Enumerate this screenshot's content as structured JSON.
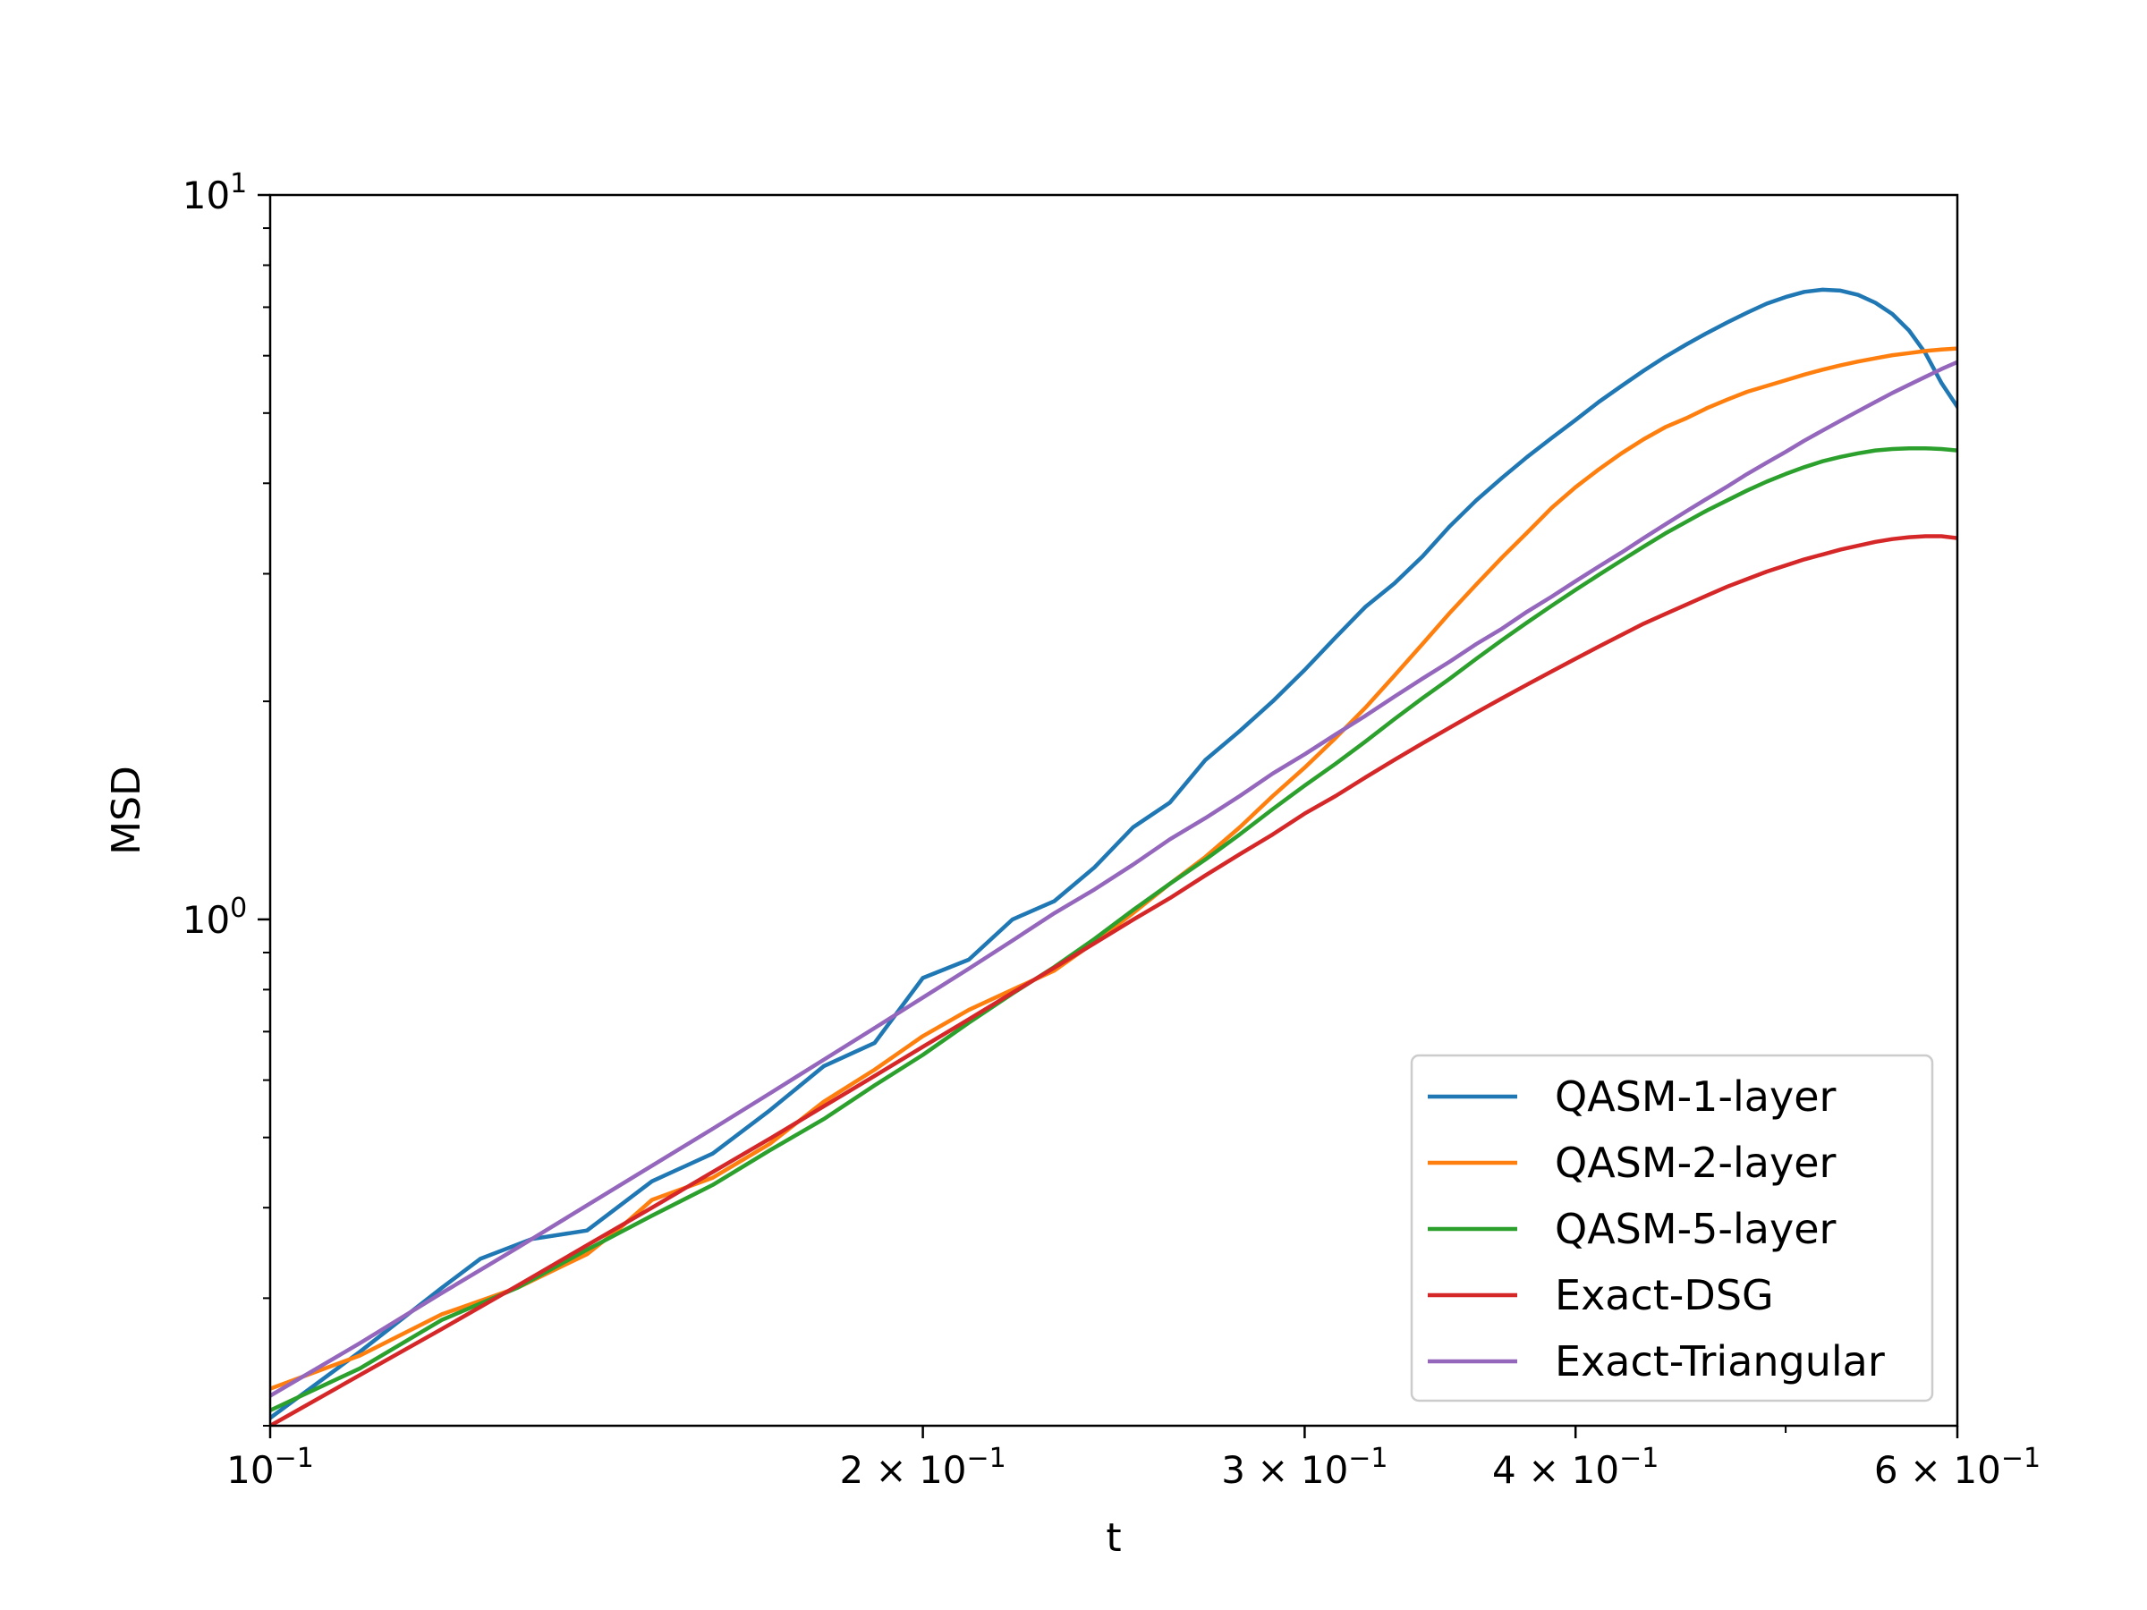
{
  "chart_data": {
    "type": "line",
    "title": "",
    "xlabel": "t",
    "ylabel": "MSD",
    "xscale": "log",
    "yscale": "log",
    "xlim": [
      0.1,
      0.6
    ],
    "ylim": [
      0.2,
      10
    ],
    "grid": false,
    "legend_position": "lower-right",
    "x_ticks": [
      {
        "value": 0.1,
        "label": "10",
        "sup": "−1"
      },
      {
        "value": 0.2,
        "label": "2 × 10",
        "sup": "−1"
      },
      {
        "value": 0.3,
        "label": "3 × 10",
        "sup": "−1"
      },
      {
        "value": 0.4,
        "label": "4 × 10",
        "sup": "−1"
      },
      {
        "value": 0.6,
        "label": "6 × 10",
        "sup": "−1"
      }
    ],
    "y_ticks": [
      {
        "value": 1,
        "label": "10",
        "sup": "0"
      },
      {
        "value": 10,
        "label": "10",
        "sup": "1"
      }
    ],
    "series": [
      {
        "name": "QASM-1-layer",
        "color": "#1f77b4",
        "points": [
          [
            0.1,
            0.205
          ],
          [
            0.11,
            0.253
          ],
          [
            0.12,
            0.31
          ],
          [
            0.125,
            0.34
          ],
          [
            0.132,
            0.362
          ],
          [
            0.14,
            0.372
          ],
          [
            0.15,
            0.435
          ],
          [
            0.16,
            0.475
          ],
          [
            0.17,
            0.545
          ],
          [
            0.18,
            0.627
          ],
          [
            0.19,
            0.675
          ],
          [
            0.2,
            0.83
          ],
          [
            0.21,
            0.88
          ],
          [
            0.22,
            1.0
          ],
          [
            0.23,
            1.06
          ],
          [
            0.24,
            1.18
          ],
          [
            0.25,
            1.34
          ],
          [
            0.26,
            1.45
          ],
          [
            0.27,
            1.66
          ],
          [
            0.28,
            1.82
          ],
          [
            0.29,
            2.0
          ],
          [
            0.3,
            2.21
          ],
          [
            0.31,
            2.45
          ],
          [
            0.32,
            2.7
          ],
          [
            0.33,
            2.91
          ],
          [
            0.34,
            3.17
          ],
          [
            0.35,
            3.49
          ],
          [
            0.36,
            3.79
          ],
          [
            0.37,
            4.07
          ],
          [
            0.38,
            4.35
          ],
          [
            0.39,
            4.62
          ],
          [
            0.4,
            4.89
          ],
          [
            0.41,
            5.18
          ],
          [
            0.42,
            5.45
          ],
          [
            0.43,
            5.72
          ],
          [
            0.44,
            5.98
          ],
          [
            0.45,
            6.22
          ],
          [
            0.46,
            6.45
          ],
          [
            0.47,
            6.67
          ],
          [
            0.48,
            6.88
          ],
          [
            0.49,
            7.08
          ],
          [
            0.5,
            7.23
          ],
          [
            0.51,
            7.35
          ],
          [
            0.52,
            7.4
          ],
          [
            0.53,
            7.38
          ],
          [
            0.54,
            7.28
          ],
          [
            0.55,
            7.1
          ],
          [
            0.56,
            6.85
          ],
          [
            0.57,
            6.5
          ],
          [
            0.58,
            6.05
          ],
          [
            0.59,
            5.5
          ],
          [
            0.6,
            5.1
          ]
        ]
      },
      {
        "name": "QASM-2-layer",
        "color": "#ff7f0e",
        "points": [
          [
            0.1,
            0.225
          ],
          [
            0.11,
            0.25
          ],
          [
            0.12,
            0.285
          ],
          [
            0.13,
            0.31
          ],
          [
            0.14,
            0.345
          ],
          [
            0.145,
            0.375
          ],
          [
            0.15,
            0.41
          ],
          [
            0.16,
            0.44
          ],
          [
            0.17,
            0.49
          ],
          [
            0.18,
            0.56
          ],
          [
            0.19,
            0.62
          ],
          [
            0.2,
            0.69
          ],
          [
            0.21,
            0.75
          ],
          [
            0.22,
            0.8
          ],
          [
            0.23,
            0.85
          ],
          [
            0.24,
            0.93
          ],
          [
            0.25,
            1.02
          ],
          [
            0.26,
            1.12
          ],
          [
            0.27,
            1.22
          ],
          [
            0.28,
            1.34
          ],
          [
            0.29,
            1.48
          ],
          [
            0.3,
            1.62
          ],
          [
            0.31,
            1.78
          ],
          [
            0.32,
            1.96
          ],
          [
            0.33,
            2.17
          ],
          [
            0.34,
            2.4
          ],
          [
            0.35,
            2.65
          ],
          [
            0.36,
            2.9
          ],
          [
            0.37,
            3.16
          ],
          [
            0.38,
            3.42
          ],
          [
            0.39,
            3.7
          ],
          [
            0.4,
            3.95
          ],
          [
            0.41,
            4.18
          ],
          [
            0.42,
            4.4
          ],
          [
            0.43,
            4.6
          ],
          [
            0.44,
            4.78
          ],
          [
            0.45,
            4.92
          ],
          [
            0.46,
            5.08
          ],
          [
            0.47,
            5.22
          ],
          [
            0.48,
            5.35
          ],
          [
            0.49,
            5.45
          ],
          [
            0.5,
            5.55
          ],
          [
            0.51,
            5.65
          ],
          [
            0.52,
            5.74
          ],
          [
            0.53,
            5.82
          ],
          [
            0.54,
            5.89
          ],
          [
            0.55,
            5.95
          ],
          [
            0.56,
            6.01
          ],
          [
            0.57,
            6.05
          ],
          [
            0.58,
            6.09
          ],
          [
            0.59,
            6.12
          ],
          [
            0.6,
            6.14
          ]
        ]
      },
      {
        "name": "QASM-5-layer",
        "color": "#2ca02c",
        "points": [
          [
            0.1,
            0.21
          ],
          [
            0.11,
            0.24
          ],
          [
            0.12,
            0.28
          ],
          [
            0.13,
            0.31
          ],
          [
            0.14,
            0.35
          ],
          [
            0.15,
            0.39
          ],
          [
            0.16,
            0.43
          ],
          [
            0.17,
            0.48
          ],
          [
            0.18,
            0.53
          ],
          [
            0.19,
            0.59
          ],
          [
            0.2,
            0.65
          ],
          [
            0.21,
            0.72
          ],
          [
            0.22,
            0.79
          ],
          [
            0.23,
            0.86
          ],
          [
            0.24,
            0.94
          ],
          [
            0.25,
            1.03
          ],
          [
            0.26,
            1.12
          ],
          [
            0.27,
            1.21
          ],
          [
            0.28,
            1.31
          ],
          [
            0.29,
            1.42
          ],
          [
            0.3,
            1.53
          ],
          [
            0.31,
            1.64
          ],
          [
            0.32,
            1.76
          ],
          [
            0.33,
            1.89
          ],
          [
            0.34,
            2.02
          ],
          [
            0.35,
            2.15
          ],
          [
            0.36,
            2.29
          ],
          [
            0.37,
            2.43
          ],
          [
            0.38,
            2.57
          ],
          [
            0.39,
            2.71
          ],
          [
            0.4,
            2.85
          ],
          [
            0.41,
            2.99
          ],
          [
            0.42,
            3.13
          ],
          [
            0.43,
            3.27
          ],
          [
            0.44,
            3.41
          ],
          [
            0.45,
            3.54
          ],
          [
            0.46,
            3.67
          ],
          [
            0.47,
            3.79
          ],
          [
            0.48,
            3.91
          ],
          [
            0.49,
            4.02
          ],
          [
            0.5,
            4.12
          ],
          [
            0.51,
            4.21
          ],
          [
            0.52,
            4.29
          ],
          [
            0.53,
            4.35
          ],
          [
            0.54,
            4.4
          ],
          [
            0.55,
            4.44
          ],
          [
            0.56,
            4.46
          ],
          [
            0.57,
            4.47
          ],
          [
            0.58,
            4.47
          ],
          [
            0.59,
            4.46
          ],
          [
            0.6,
            4.44
          ]
        ]
      },
      {
        "name": "Exact-DSG",
        "color": "#d62728",
        "points": [
          [
            0.1,
            0.2
          ],
          [
            0.11,
            0.235
          ],
          [
            0.12,
            0.272
          ],
          [
            0.13,
            0.312
          ],
          [
            0.14,
            0.355
          ],
          [
            0.15,
            0.4
          ],
          [
            0.16,
            0.448
          ],
          [
            0.17,
            0.498
          ],
          [
            0.18,
            0.552
          ],
          [
            0.19,
            0.608
          ],
          [
            0.2,
            0.667
          ],
          [
            0.21,
            0.728
          ],
          [
            0.22,
            0.792
          ],
          [
            0.23,
            0.858
          ],
          [
            0.24,
            0.927
          ],
          [
            0.25,
            0.999
          ],
          [
            0.26,
            1.07
          ],
          [
            0.27,
            1.15
          ],
          [
            0.28,
            1.23
          ],
          [
            0.29,
            1.31
          ],
          [
            0.3,
            1.4
          ],
          [
            0.31,
            1.48
          ],
          [
            0.32,
            1.57
          ],
          [
            0.33,
            1.66
          ],
          [
            0.34,
            1.75
          ],
          [
            0.35,
            1.84
          ],
          [
            0.36,
            1.93
          ],
          [
            0.37,
            2.02
          ],
          [
            0.38,
            2.11
          ],
          [
            0.39,
            2.2
          ],
          [
            0.4,
            2.29
          ],
          [
            0.41,
            2.38
          ],
          [
            0.42,
            2.47
          ],
          [
            0.43,
            2.56
          ],
          [
            0.44,
            2.64
          ],
          [
            0.45,
            2.72
          ],
          [
            0.46,
            2.8
          ],
          [
            0.47,
            2.88
          ],
          [
            0.48,
            2.95
          ],
          [
            0.49,
            3.02
          ],
          [
            0.5,
            3.08
          ],
          [
            0.51,
            3.14
          ],
          [
            0.52,
            3.19
          ],
          [
            0.53,
            3.24
          ],
          [
            0.54,
            3.28
          ],
          [
            0.55,
            3.32
          ],
          [
            0.56,
            3.35
          ],
          [
            0.57,
            3.37
          ],
          [
            0.58,
            3.38
          ],
          [
            0.59,
            3.38
          ],
          [
            0.6,
            3.36
          ]
        ]
      },
      {
        "name": "Exact-Triangular",
        "color": "#9467bd",
        "points": [
          [
            0.1,
            0.22
          ],
          [
            0.11,
            0.26
          ],
          [
            0.12,
            0.305
          ],
          [
            0.13,
            0.352
          ],
          [
            0.14,
            0.403
          ],
          [
            0.15,
            0.457
          ],
          [
            0.16,
            0.514
          ],
          [
            0.17,
            0.575
          ],
          [
            0.18,
            0.64
          ],
          [
            0.19,
            0.708
          ],
          [
            0.2,
            0.78
          ],
          [
            0.21,
            0.855
          ],
          [
            0.22,
            0.935
          ],
          [
            0.23,
            1.02
          ],
          [
            0.24,
            1.1
          ],
          [
            0.25,
            1.19
          ],
          [
            0.26,
            1.29
          ],
          [
            0.27,
            1.38
          ],
          [
            0.28,
            1.48
          ],
          [
            0.29,
            1.59
          ],
          [
            0.3,
            1.69
          ],
          [
            0.31,
            1.8
          ],
          [
            0.32,
            1.91
          ],
          [
            0.33,
            2.03
          ],
          [
            0.34,
            2.15
          ],
          [
            0.35,
            2.27
          ],
          [
            0.36,
            2.4
          ],
          [
            0.37,
            2.52
          ],
          [
            0.38,
            2.66
          ],
          [
            0.39,
            2.79
          ],
          [
            0.4,
            2.93
          ],
          [
            0.41,
            3.07
          ],
          [
            0.42,
            3.21
          ],
          [
            0.43,
            3.36
          ],
          [
            0.44,
            3.51
          ],
          [
            0.45,
            3.66
          ],
          [
            0.46,
            3.81
          ],
          [
            0.47,
            3.96
          ],
          [
            0.48,
            4.12
          ],
          [
            0.49,
            4.27
          ],
          [
            0.5,
            4.42
          ],
          [
            0.51,
            4.58
          ],
          [
            0.52,
            4.73
          ],
          [
            0.53,
            4.88
          ],
          [
            0.54,
            5.03
          ],
          [
            0.55,
            5.18
          ],
          [
            0.56,
            5.33
          ],
          [
            0.57,
            5.47
          ],
          [
            0.58,
            5.61
          ],
          [
            0.59,
            5.75
          ],
          [
            0.6,
            5.88
          ]
        ]
      }
    ]
  }
}
